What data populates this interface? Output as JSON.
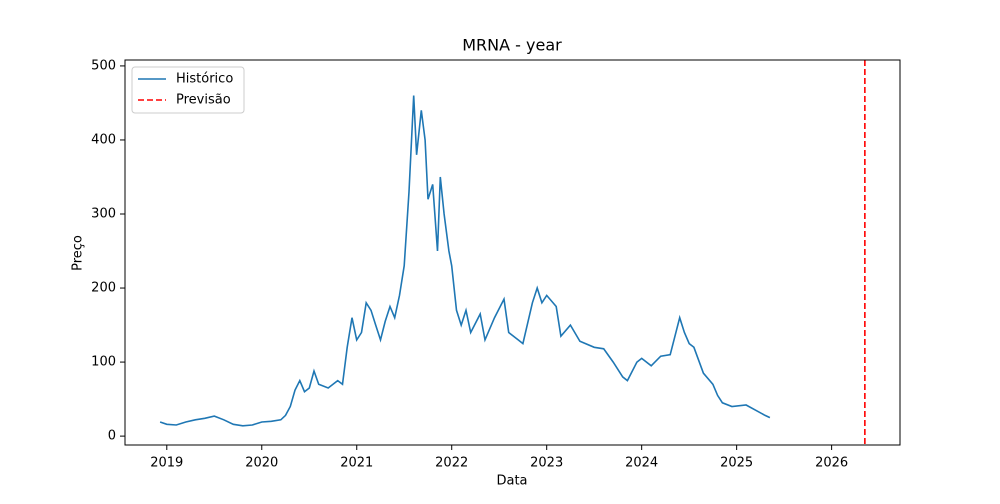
{
  "chart_data": {
    "type": "line",
    "title": "MRNA - year",
    "x_label": "Data",
    "y_label": "Preço",
    "legend": "upper left",
    "grid": false,
    "xlim": [
      2018.56,
      2026.72
    ],
    "xticks": [
      2019,
      2020,
      2021,
      2022,
      2023,
      2024,
      2025,
      2026
    ],
    "ylim": [
      -12,
      508
    ],
    "yticks": [
      0,
      100,
      200,
      300,
      400,
      500
    ],
    "series": [
      {
        "name": "Histórico",
        "color": "#1f77b4",
        "x": [
          2018.93,
          2019.0,
          2019.1,
          2019.2,
          2019.3,
          2019.4,
          2019.5,
          2019.6,
          2019.7,
          2019.8,
          2019.9,
          2020.0,
          2020.1,
          2020.2,
          2020.25,
          2020.3,
          2020.35,
          2020.4,
          2020.45,
          2020.5,
          2020.55,
          2020.6,
          2020.7,
          2020.8,
          2020.85,
          2020.9,
          2020.95,
          2021.0,
          2021.05,
          2021.1,
          2021.15,
          2021.2,
          2021.25,
          2021.3,
          2021.35,
          2021.4,
          2021.45,
          2021.5,
          2021.55,
          2021.6,
          2021.63,
          2021.68,
          2021.72,
          2021.75,
          2021.8,
          2021.85,
          2021.88,
          2021.92,
          2021.97,
          2022.0,
          2022.05,
          2022.1,
          2022.15,
          2022.2,
          2022.3,
          2022.35,
          2022.45,
          2022.55,
          2022.6,
          2022.7,
          2022.75,
          2022.85,
          2022.9,
          2022.95,
          2023.0,
          2023.1,
          2023.15,
          2023.25,
          2023.35,
          2023.5,
          2023.6,
          2023.7,
          2023.8,
          2023.85,
          2023.95,
          2024.0,
          2024.1,
          2024.2,
          2024.3,
          2024.4,
          2024.45,
          2024.5,
          2024.55,
          2024.65,
          2024.75,
          2024.8,
          2024.85,
          2024.95,
          2025.1,
          2025.2,
          2025.3,
          2025.35
        ],
        "values": [
          19,
          16,
          15,
          19,
          22,
          24,
          27,
          22,
          16,
          14,
          15,
          19,
          20,
          22,
          28,
          40,
          62,
          75,
          60,
          65,
          88,
          70,
          65,
          75,
          70,
          120,
          160,
          130,
          140,
          180,
          170,
          150,
          130,
          155,
          175,
          160,
          190,
          230,
          330,
          460,
          380,
          440,
          400,
          320,
          340,
          250,
          350,
          300,
          250,
          230,
          170,
          150,
          170,
          140,
          165,
          130,
          160,
          185,
          140,
          130,
          125,
          180,
          200,
          180,
          190,
          175,
          135,
          150,
          128,
          120,
          118,
          100,
          80,
          75,
          100,
          105,
          95,
          108,
          110,
          160,
          140,
          125,
          120,
          85,
          70,
          55,
          45,
          40,
          42,
          35,
          28,
          25
        ]
      },
      {
        "name": "Previsão",
        "color": "#ff0000",
        "dashed": true,
        "x": [
          2026.35
        ]
      }
    ]
  }
}
